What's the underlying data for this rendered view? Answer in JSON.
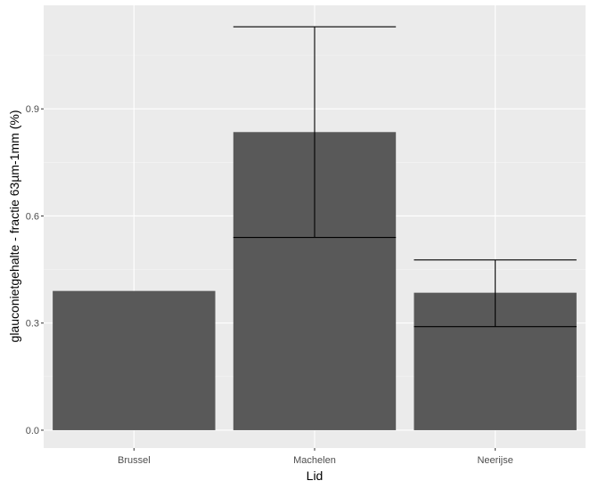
{
  "chart_data": {
    "type": "bar",
    "xlabel": "Lid",
    "ylabel": "glauconietgehalte - fractie 63µm-1mm (%)",
    "categories": [
      "Brussel",
      "Machelen",
      "Neerijse"
    ],
    "values": [
      0.39,
      0.835,
      0.385
    ],
    "error_bars": [
      null,
      {
        "low": 0.54,
        "high": 1.13
      },
      {
        "low": 0.29,
        "high": 0.477
      }
    ],
    "ylim": [
      -0.05,
      1.19
    ],
    "yticks": [
      0.0,
      0.3,
      0.6,
      0.9
    ],
    "ytick_labels": [
      "0.0",
      "0.3",
      "0.6",
      "0.9"
    ],
    "grid": true,
    "colors": {
      "panel": "#ebebeb",
      "grid_major": "#ffffff",
      "grid_minor": "#f5f5f5",
      "bar": "#595959",
      "errorbar": "#000000"
    }
  }
}
